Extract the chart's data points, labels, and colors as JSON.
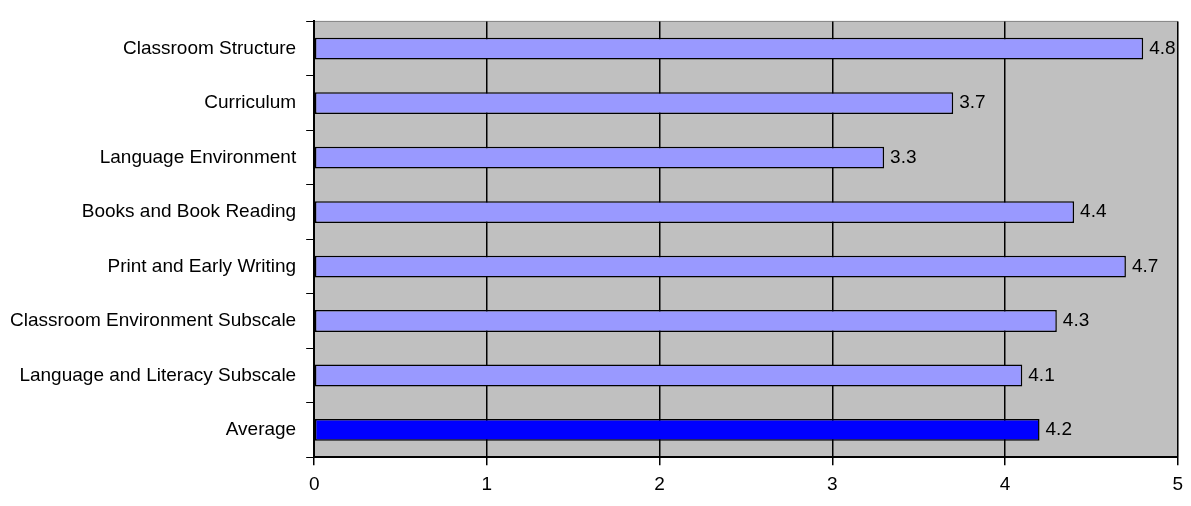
{
  "chart_data": {
    "type": "bar",
    "orientation": "horizontal",
    "categories": [
      "Classroom Structure",
      "Curriculum",
      "Language Environment",
      "Books and Book Reading",
      "Print and Early Writing",
      "Classroom Environment Subscale",
      "Language and Literacy Subscale",
      "Average"
    ],
    "values": [
      4.8,
      3.7,
      3.3,
      4.4,
      4.7,
      4.3,
      4.1,
      4.2
    ],
    "colors": [
      "#9999ff",
      "#9999ff",
      "#9999ff",
      "#9999ff",
      "#9999ff",
      "#9999ff",
      "#9999ff",
      "#0000ff"
    ],
    "xlim": [
      0,
      5
    ],
    "xticks": [
      0,
      1,
      2,
      3,
      4,
      5
    ],
    "grid": "x",
    "legend": false,
    "data_labels": true
  }
}
